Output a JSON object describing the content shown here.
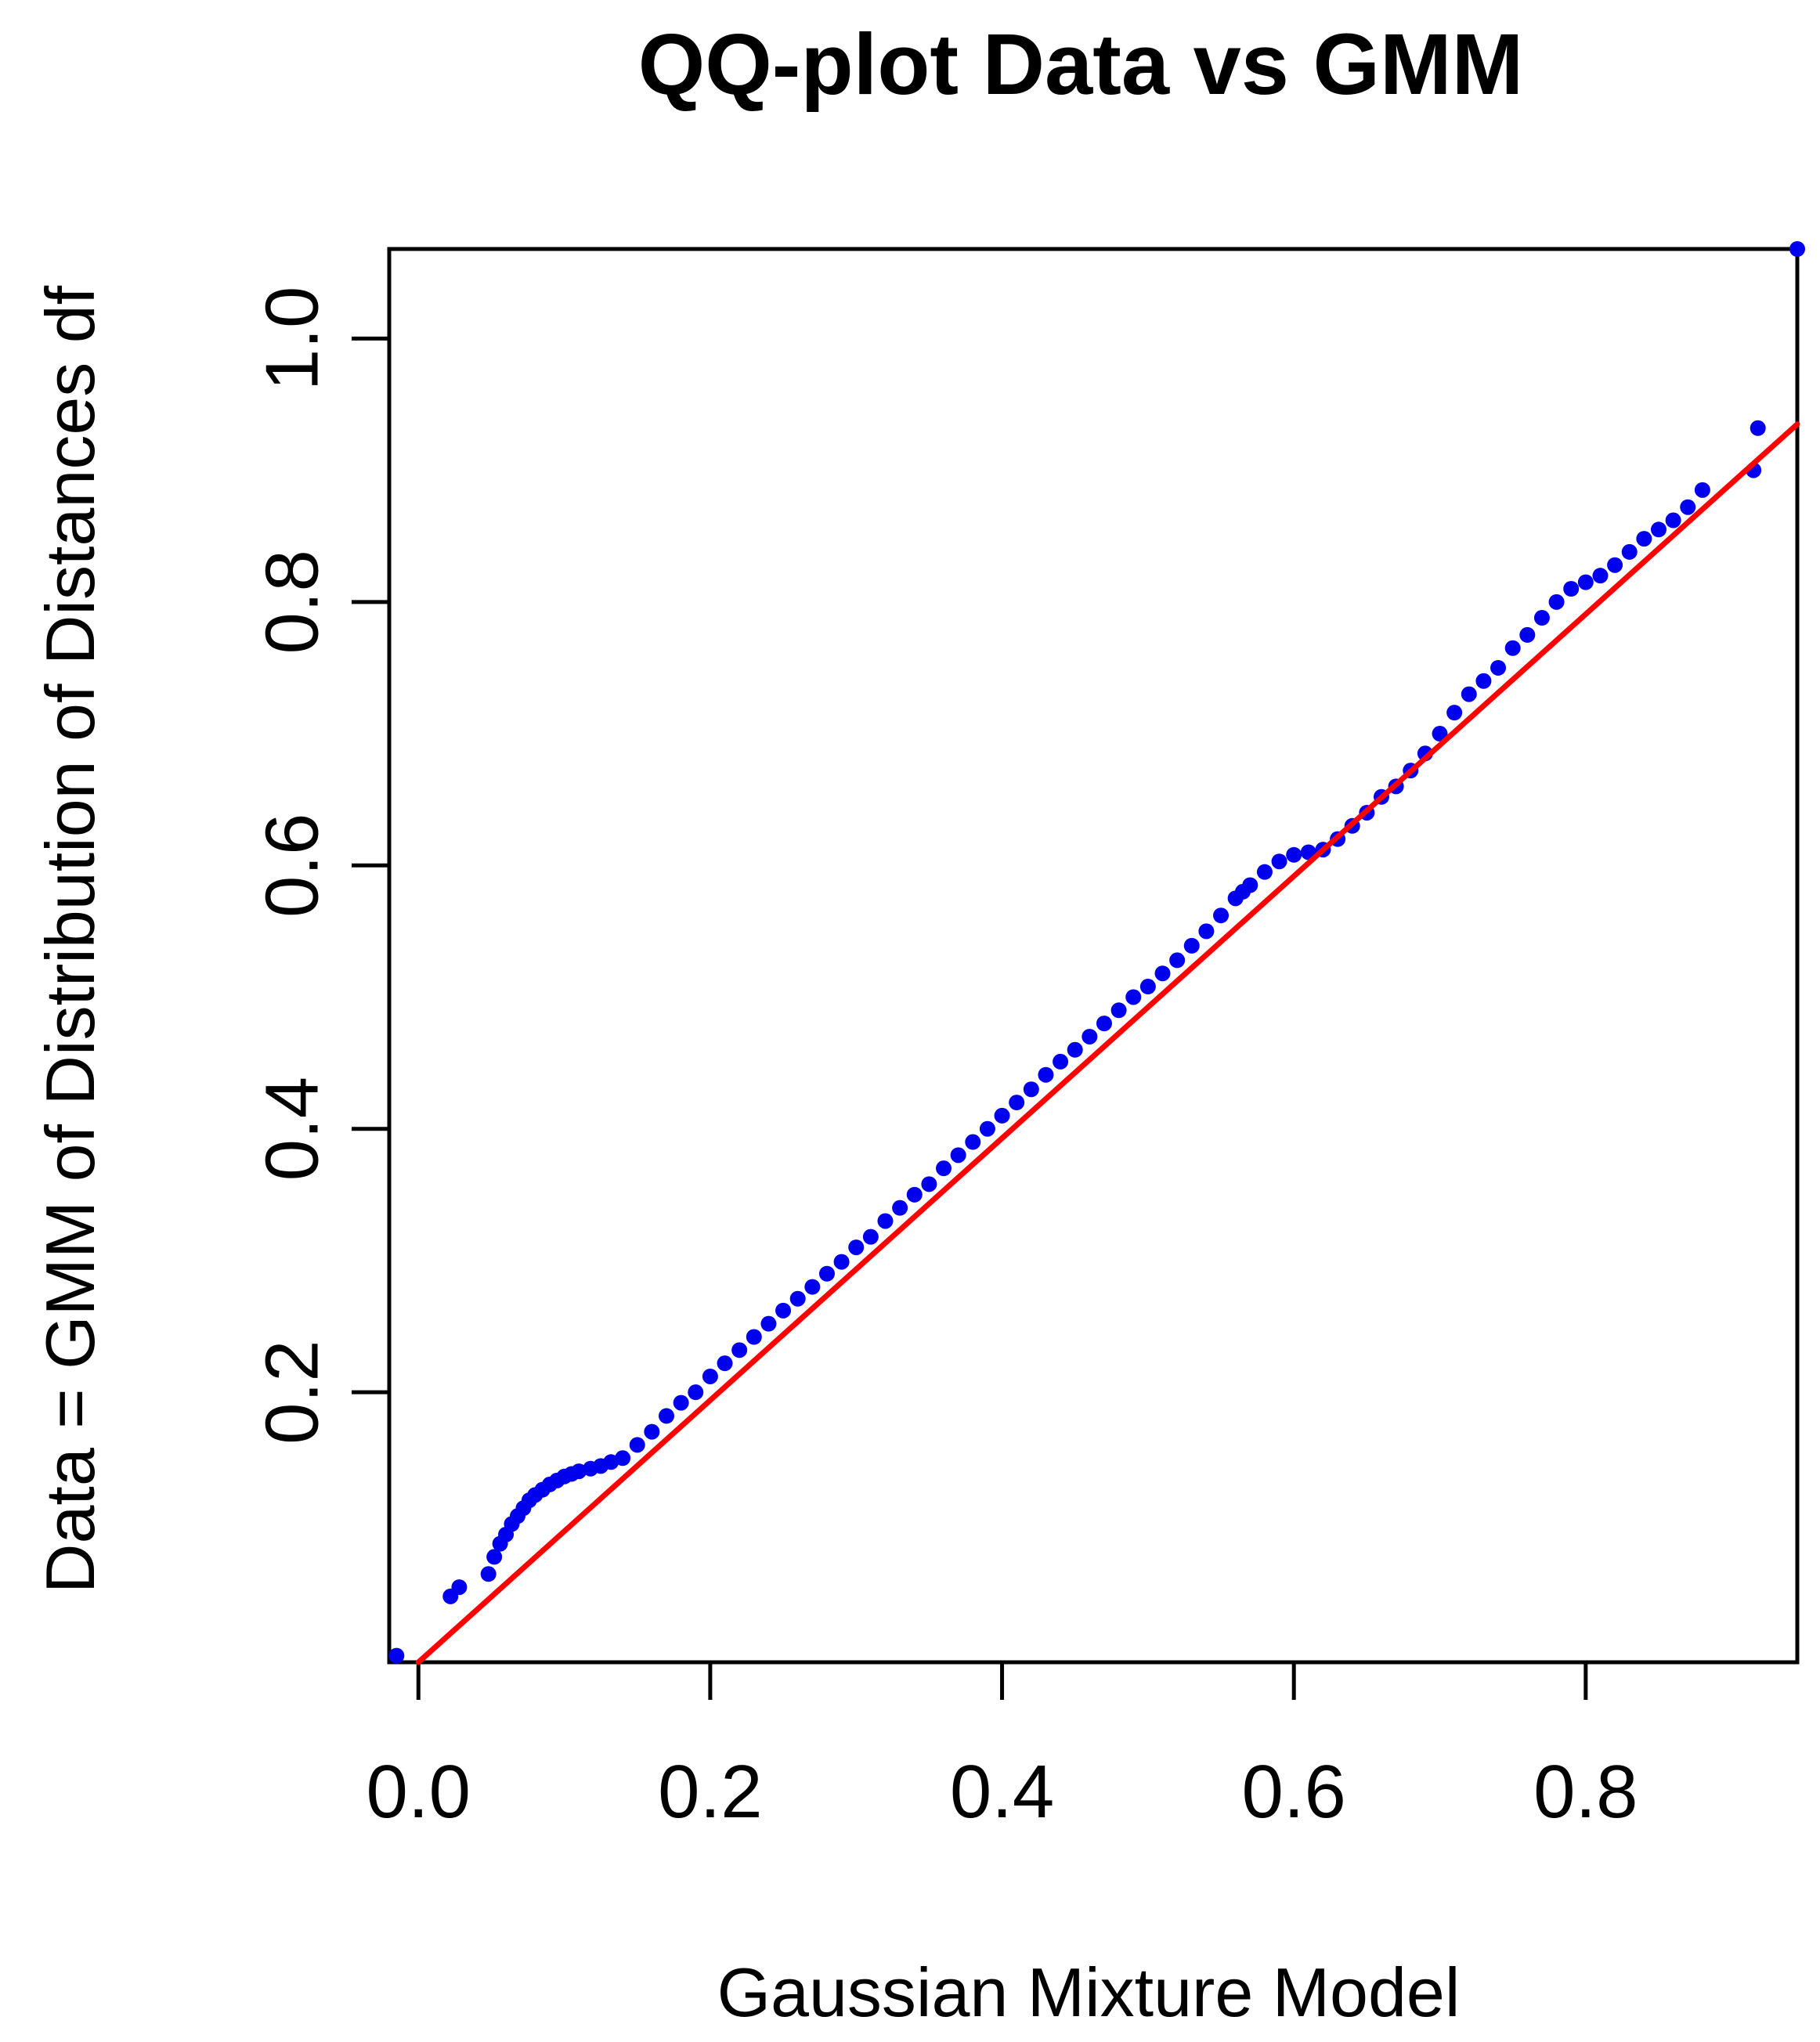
{
  "chart_data": {
    "type": "scatter",
    "title": "QQ-plot Data vs GMM",
    "xlabel": "Gaussian Mixture Model",
    "ylabel": "Data = GMM of Distribution of Distances df",
    "xlim": [
      -0.02,
      0.945
    ],
    "ylim": [
      -0.005,
      1.068
    ],
    "x_ticks": [
      0.0,
      0.2,
      0.4,
      0.6,
      0.8
    ],
    "x_tick_labels": [
      "0.0",
      "0.2",
      "0.4",
      "0.6",
      "0.8"
    ],
    "y_ticks": [
      0.2,
      0.4,
      0.6,
      0.8,
      1.0
    ],
    "y_tick_labels": [
      "0.2",
      "0.4",
      "0.6",
      "0.8",
      "1.0"
    ],
    "grid": false,
    "colors": {
      "points": "#0000ee",
      "reference_line": "#ff0000",
      "axes": "#000000"
    },
    "reference_line": {
      "x": [
        0.0,
        0.945
      ],
      "y": [
        -0.01,
        0.935
      ]
    },
    "series": [
      {
        "x": [
          -0.015,
          0.022,
          0.028,
          0.048,
          0.052,
          0.056,
          0.06,
          0.064,
          0.068,
          0.072,
          0.076,
          0.08,
          0.085,
          0.09,
          0.095,
          0.1,
          0.105,
          0.11,
          0.118,
          0.125,
          0.132,
          0.14,
          0.15,
          0.16,
          0.17,
          0.18,
          0.19,
          0.2,
          0.21,
          0.22,
          0.23,
          0.24,
          0.25,
          0.26,
          0.27,
          0.28,
          0.29,
          0.3,
          0.31,
          0.32,
          0.33,
          0.34,
          0.35,
          0.36,
          0.37,
          0.38,
          0.39,
          0.4,
          0.41,
          0.42,
          0.43,
          0.44,
          0.45,
          0.46,
          0.47,
          0.48,
          0.49,
          0.5,
          0.51,
          0.52,
          0.53,
          0.54,
          0.55,
          0.56,
          0.565,
          0.57,
          0.58,
          0.59,
          0.6,
          0.61,
          0.62,
          0.63,
          0.64,
          0.65,
          0.66,
          0.67,
          0.68,
          0.69,
          0.7,
          0.71,
          0.72,
          0.73,
          0.74,
          0.75,
          0.76,
          0.77,
          0.78,
          0.79,
          0.8,
          0.81,
          0.82,
          0.83,
          0.84,
          0.85,
          0.86,
          0.87,
          0.88,
          0.915,
          0.918,
          0.945
        ],
        "y": [
          0.0,
          0.045,
          0.052,
          0.062,
          0.075,
          0.085,
          0.092,
          0.1,
          0.106,
          0.112,
          0.118,
          0.122,
          0.126,
          0.13,
          0.133,
          0.136,
          0.138,
          0.14,
          0.142,
          0.144,
          0.147,
          0.15,
          0.16,
          0.17,
          0.182,
          0.192,
          0.2,
          0.212,
          0.222,
          0.232,
          0.242,
          0.252,
          0.262,
          0.271,
          0.28,
          0.29,
          0.299,
          0.31,
          0.318,
          0.33,
          0.34,
          0.35,
          0.358,
          0.37,
          0.38,
          0.39,
          0.4,
          0.41,
          0.42,
          0.43,
          0.441,
          0.451,
          0.46,
          0.47,
          0.48,
          0.49,
          0.5,
          0.508,
          0.518,
          0.528,
          0.539,
          0.55,
          0.562,
          0.575,
          0.58,
          0.585,
          0.595,
          0.603,
          0.608,
          0.61,
          0.612,
          0.62,
          0.63,
          0.64,
          0.652,
          0.66,
          0.672,
          0.685,
          0.7,
          0.716,
          0.73,
          0.74,
          0.75,
          0.765,
          0.775,
          0.788,
          0.8,
          0.81,
          0.815,
          0.82,
          0.828,
          0.838,
          0.848,
          0.855,
          0.862,
          0.872,
          0.885,
          0.9,
          0.932,
          1.07
        ]
      }
    ]
  }
}
